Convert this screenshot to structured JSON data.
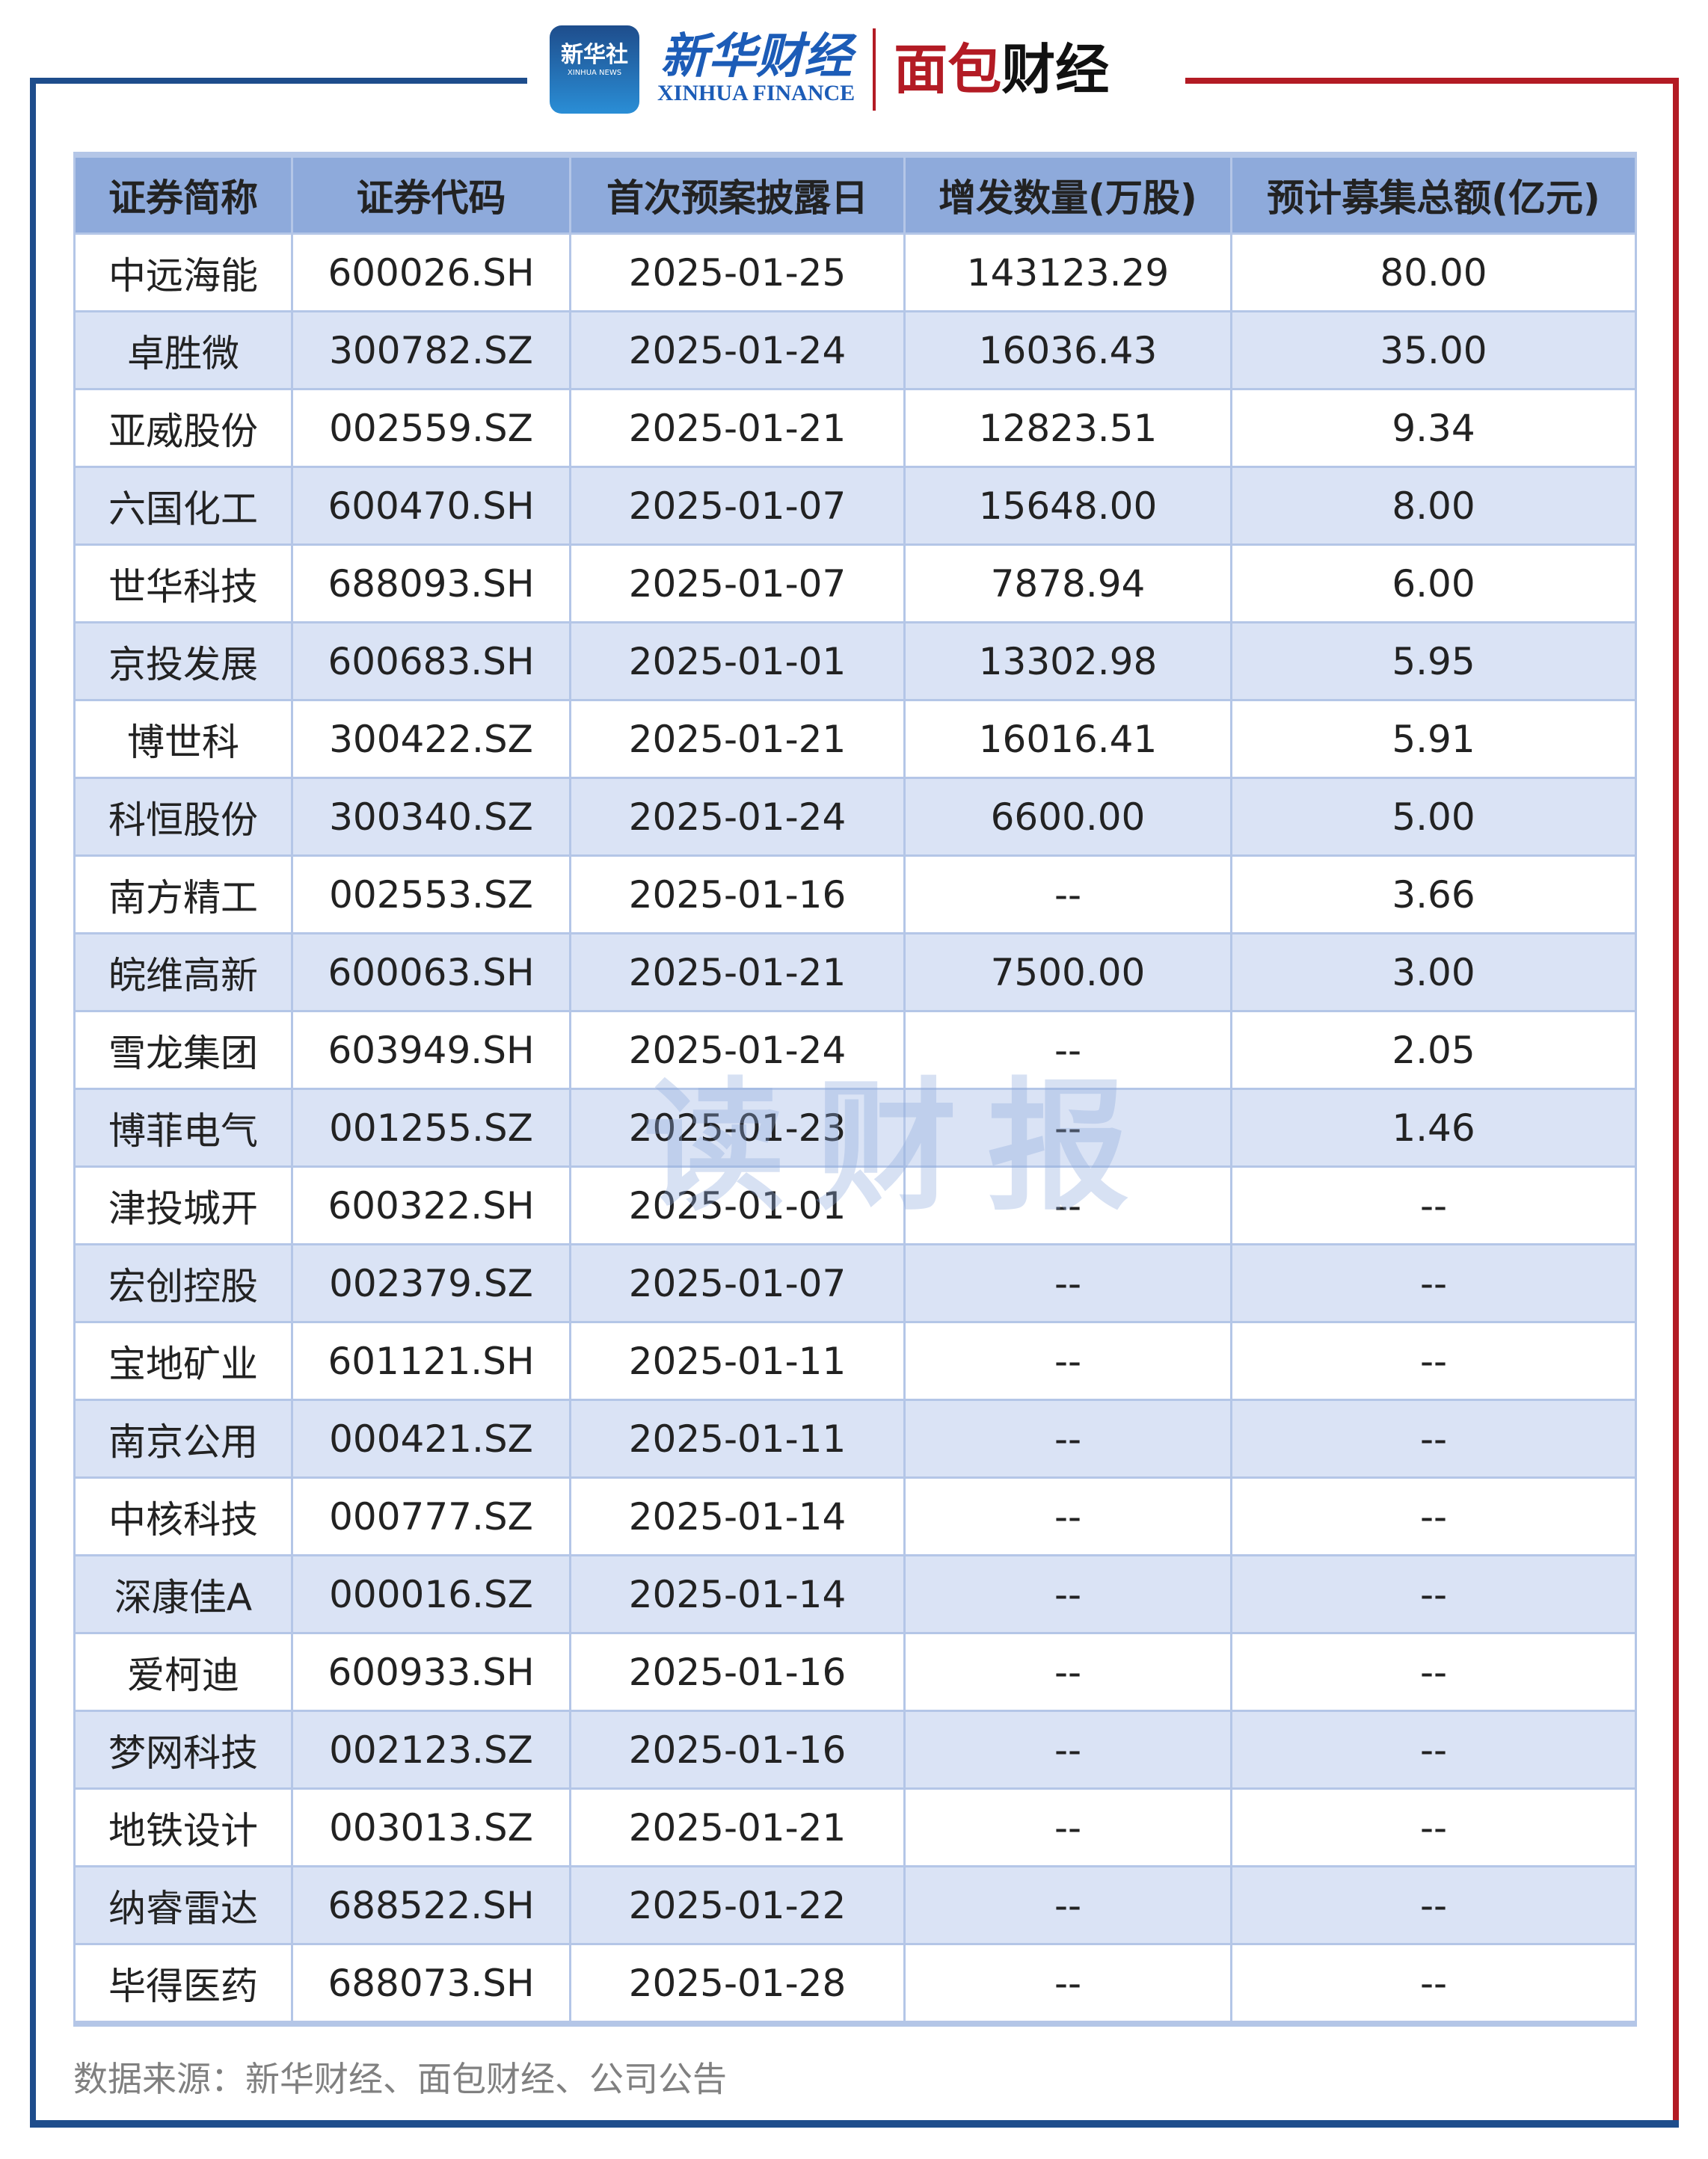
{
  "header": {
    "xinhua_badge": "新华社",
    "xinhua_badge_en": "XINHUA NEWS",
    "xinhua_finance_cn": "新华财经",
    "xinhua_finance_en": "XINHUA FINANCE",
    "mianbao_logo": "面包财经"
  },
  "colors": {
    "frame_blue": "#1e4d8c",
    "frame_red": "#b31b24",
    "header_bg": "#8eaadb",
    "alt_row_bg": "#dae3f5"
  },
  "table": {
    "columns": [
      "证券简称",
      "证券代码",
      "首次预案披露日",
      "增发数量(万股)",
      "预计募集总额(亿元)"
    ],
    "rows": [
      [
        "中远海能",
        "600026.SH",
        "2025-01-25",
        "143123.29",
        "80.00"
      ],
      [
        "卓胜微",
        "300782.SZ",
        "2025-01-24",
        "16036.43",
        "35.00"
      ],
      [
        "亚威股份",
        "002559.SZ",
        "2025-01-21",
        "12823.51",
        "9.34"
      ],
      [
        "六国化工",
        "600470.SH",
        "2025-01-07",
        "15648.00",
        "8.00"
      ],
      [
        "世华科技",
        "688093.SH",
        "2025-01-07",
        "7878.94",
        "6.00"
      ],
      [
        "京投发展",
        "600683.SH",
        "2025-01-01",
        "13302.98",
        "5.95"
      ],
      [
        "博世科",
        "300422.SZ",
        "2025-01-21",
        "16016.41",
        "5.91"
      ],
      [
        "科恒股份",
        "300340.SZ",
        "2025-01-24",
        "6600.00",
        "5.00"
      ],
      [
        "南方精工",
        "002553.SZ",
        "2025-01-16",
        "--",
        "3.66"
      ],
      [
        "皖维高新",
        "600063.SH",
        "2025-01-21",
        "7500.00",
        "3.00"
      ],
      [
        "雪龙集团",
        "603949.SH",
        "2025-01-24",
        "--",
        "2.05"
      ],
      [
        "博菲电气",
        "001255.SZ",
        "2025-01-23",
        "--",
        "1.46"
      ],
      [
        "津投城开",
        "600322.SH",
        "2025-01-01",
        "--",
        "--"
      ],
      [
        "宏创控股",
        "002379.SZ",
        "2025-01-07",
        "--",
        "--"
      ],
      [
        "宝地矿业",
        "601121.SH",
        "2025-01-11",
        "--",
        "--"
      ],
      [
        "南京公用",
        "000421.SZ",
        "2025-01-11",
        "--",
        "--"
      ],
      [
        "中核科技",
        "000777.SZ",
        "2025-01-14",
        "--",
        "--"
      ],
      [
        "深康佳A",
        "000016.SZ",
        "2025-01-14",
        "--",
        "--"
      ],
      [
        "爱柯迪",
        "600933.SH",
        "2025-01-16",
        "--",
        "--"
      ],
      [
        "梦网科技",
        "002123.SZ",
        "2025-01-16",
        "--",
        "--"
      ],
      [
        "地铁设计",
        "003013.SZ",
        "2025-01-21",
        "--",
        "--"
      ],
      [
        "纳睿雷达",
        "688522.SH",
        "2025-01-22",
        "--",
        "--"
      ],
      [
        "毕得医药",
        "688073.SH",
        "2025-01-28",
        "--",
        "--"
      ]
    ]
  },
  "watermark": "读财报",
  "source": "数据来源：新华财经、面包财经、公司公告"
}
